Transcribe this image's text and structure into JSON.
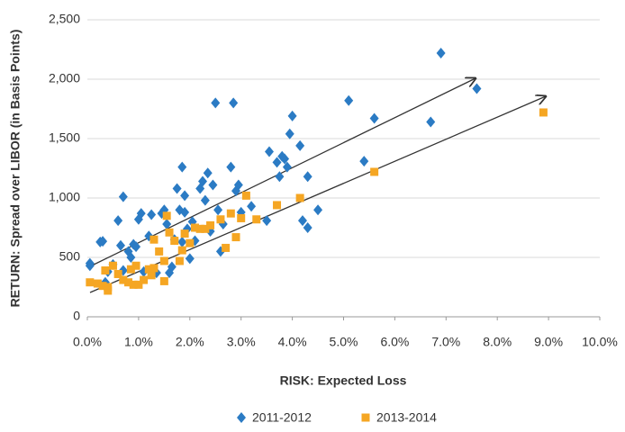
{
  "chart_data": {
    "type": "scatter",
    "x_label": "RISK: Expected Loss",
    "y_label": "RETURN: Spread over LIBOR (in Basis Points)",
    "xlim": [
      0,
      10
    ],
    "xticks": [
      {
        "value": 0,
        "label": "0.0%"
      },
      {
        "value": 1,
        "label": "1.0%"
      },
      {
        "value": 2,
        "label": "2.0%"
      },
      {
        "value": 3,
        "label": "3.0%"
      },
      {
        "value": 4,
        "label": "4.0%"
      },
      {
        "value": 5,
        "label": "5.0%"
      },
      {
        "value": 6,
        "label": "6.0%"
      },
      {
        "value": 7,
        "label": "7.0%"
      },
      {
        "value": 8,
        "label": "8.0%"
      },
      {
        "value": 9,
        "label": "9.0%"
      },
      {
        "value": 10,
        "label": "10.0%"
      }
    ],
    "ylim": [
      0,
      2500
    ],
    "yticks": [
      0,
      500,
      {
        "value": 1000,
        "label": "1,000"
      },
      {
        "value": 1500,
        "label": "1,500"
      },
      {
        "value": 2000,
        "label": "2,000"
      },
      {
        "value": 2500,
        "label": "2,500"
      }
    ],
    "grid": true,
    "legend": "bottom",
    "series": [
      {
        "name": "2011-2012",
        "color": "#2b7bc4",
        "marker": "diamond",
        "x": [
          0.05,
          0.05,
          0.25,
          0.3,
          0.35,
          0.4,
          0.5,
          0.6,
          0.65,
          0.7,
          0.7,
          0.8,
          0.85,
          0.9,
          0.95,
          1.0,
          1.05,
          1.1,
          1.2,
          1.25,
          1.35,
          1.45,
          1.5,
          1.55,
          1.6,
          1.65,
          1.7,
          1.75,
          1.8,
          1.85,
          1.85,
          1.9,
          1.9,
          1.95,
          2.0,
          2.05,
          2.1,
          2.2,
          2.25,
          2.3,
          2.35,
          2.4,
          2.45,
          2.5,
          2.55,
          2.6,
          2.65,
          2.8,
          2.85,
          2.9,
          2.95,
          3.0,
          3.2,
          3.5,
          3.55,
          3.7,
          3.75,
          3.8,
          3.85,
          3.9,
          3.95,
          4.0,
          4.15,
          4.2,
          4.3,
          4.3,
          4.5,
          5.1,
          5.4,
          5.6,
          6.7,
          6.9,
          7.6
        ],
        "values": [
          450,
          430,
          630,
          635,
          290,
          380,
          440,
          810,
          600,
          1010,
          390,
          550,
          500,
          610,
          590,
          820,
          870,
          380,
          680,
          860,
          370,
          870,
          900,
          780,
          370,
          420,
          650,
          1080,
          900,
          630,
          1260,
          880,
          1020,
          740,
          490,
          800,
          640,
          1080,
          1140,
          980,
          1210,
          720,
          1110,
          1800,
          900,
          550,
          780,
          1260,
          1800,
          1060,
          1110,
          880,
          930,
          810,
          1390,
          1300,
          1180,
          1350,
          1330,
          1260,
          1540,
          1690,
          1440,
          810,
          750,
          1180,
          900,
          1820,
          1310,
          1670,
          1640,
          2220,
          1920
        ]
      },
      {
        "name": "2013-2014",
        "color": "#f5a623",
        "marker": "square",
        "x": [
          0.05,
          0.2,
          0.3,
          0.35,
          0.4,
          0.4,
          0.5,
          0.6,
          0.7,
          0.8,
          0.85,
          0.9,
          0.95,
          1.0,
          1.1,
          1.2,
          1.25,
          1.3,
          1.3,
          1.4,
          1.5,
          1.5,
          1.55,
          1.6,
          1.7,
          1.8,
          1.85,
          1.9,
          2.0,
          2.1,
          2.2,
          2.3,
          2.4,
          2.6,
          2.7,
          2.8,
          2.9,
          3.0,
          3.1,
          3.3,
          3.7,
          4.15,
          5.6,
          8.9
        ],
        "values": [
          290,
          280,
          260,
          390,
          250,
          220,
          430,
          360,
          310,
          290,
          400,
          270,
          430,
          270,
          310,
          400,
          350,
          650,
          410,
          550,
          300,
          470,
          850,
          710,
          640,
          470,
          560,
          700,
          620,
          750,
          740,
          740,
          770,
          820,
          580,
          870,
          670,
          830,
          1020,
          820,
          940,
          1000,
          1220,
          1720
        ]
      }
    ]
  }
}
